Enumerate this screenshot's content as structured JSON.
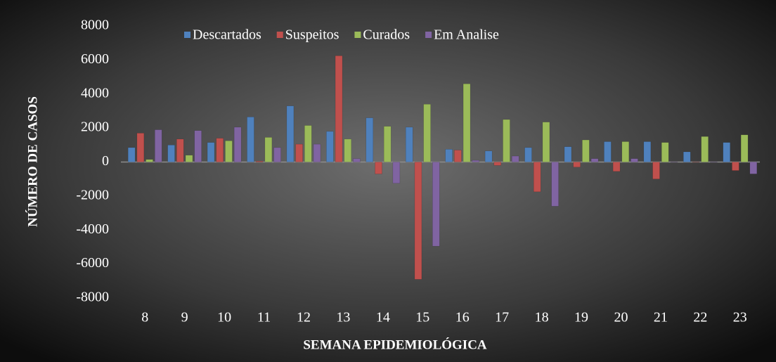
{
  "chart_data": {
    "type": "bar",
    "xlabel": "SEMANA EPIDEMIOLÓGICA",
    "ylabel": "NÚMERO DE CASOS",
    "categories": [
      "8",
      "9",
      "10",
      "11",
      "12",
      "13",
      "14",
      "15",
      "16",
      "17",
      "18",
      "19",
      "20",
      "21",
      "22",
      "23"
    ],
    "series": [
      {
        "name": "Descartados",
        "color": "#4f81bd",
        "values": [
          850,
          1000,
          1150,
          2650,
          3300,
          1800,
          2600,
          2050,
          750,
          650,
          850,
          900,
          1200,
          1200,
          600,
          1150
        ]
      },
      {
        "name": "Suspeitos",
        "color": "#c0504d",
        "values": [
          1700,
          1350,
          1400,
          50,
          1050,
          6250,
          -700,
          -6900,
          700,
          -200,
          -1750,
          -300,
          -550,
          -1000,
          0,
          -500
        ]
      },
      {
        "name": "Curados",
        "color": "#9bbb59",
        "values": [
          150,
          400,
          1250,
          1450,
          2150,
          1350,
          2100,
          3400,
          4600,
          2500,
          2350,
          1300,
          1200,
          1150,
          1500,
          1600
        ]
      },
      {
        "name": "Em Analise",
        "color": "#8064a2",
        "values": [
          1900,
          1850,
          2050,
          850,
          1050,
          200,
          -1250,
          -4950,
          100,
          350,
          -2600,
          200,
          200,
          0,
          0,
          -700
        ]
      }
    ],
    "ylim": [
      -8000,
      8000
    ],
    "yticks": [
      -8000,
      -6000,
      -4000,
      -2000,
      0,
      2000,
      4000,
      6000,
      8000
    ],
    "legend": "top"
  }
}
